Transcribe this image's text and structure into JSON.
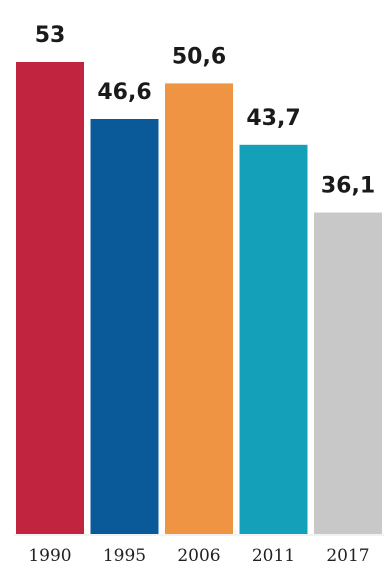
{
  "chart_data": {
    "type": "bar",
    "title": "",
    "xlabel": "",
    "ylabel": "",
    "categories": [
      "1990",
      "1995",
      "2006",
      "2011",
      "2017"
    ],
    "values": [
      53,
      46.6,
      50.6,
      43.7,
      36.1
    ],
    "value_labels": [
      "53",
      "46,6",
      "50,6",
      "43,7",
      "36,1"
    ],
    "colors": [
      "#c0243e",
      "#0a5a9a",
      "#ef9443",
      "#14a0b8",
      "#c8c8c8"
    ],
    "ylim": [
      0,
      53
    ],
    "grid": false,
    "legend": "none"
  }
}
